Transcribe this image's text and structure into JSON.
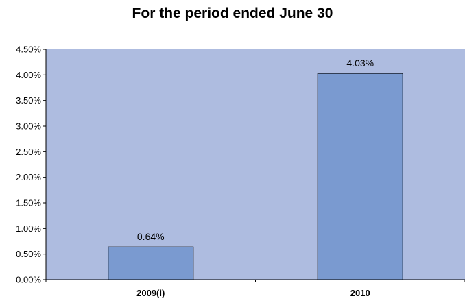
{
  "chart_data": {
    "type": "bar",
    "title": "For the period ended June 30",
    "categories": [
      "2009(i)",
      "2010"
    ],
    "values": [
      0.64,
      4.03
    ],
    "data_labels": [
      "0.64%",
      "4.03%"
    ],
    "y_ticks": [
      "0.00%",
      "0.50%",
      "1.00%",
      "1.50%",
      "2.00%",
      "2.50%",
      "3.00%",
      "3.50%",
      "4.00%",
      "4.50%"
    ],
    "ylim": [
      0,
      4.5
    ],
    "grid": false,
    "legend": "none",
    "colors": {
      "plot_bg": "#aebce0",
      "bar_fill": "#7a9ad0",
      "bar_stroke": "#000000"
    }
  }
}
